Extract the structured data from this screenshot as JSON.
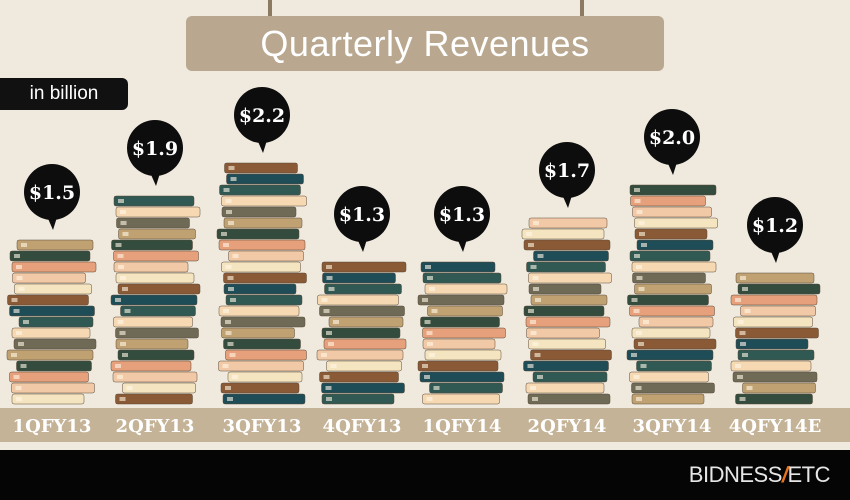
{
  "title": "Quarterly Revenues",
  "unit_label": "in billion",
  "brand": {
    "name_left": "BIDNESS",
    "slash": "/",
    "name_right": "ETC"
  },
  "colors": {
    "background": "#efe9de",
    "title_plate": "#b9a88f",
    "axis_band": "#c5b397",
    "bubble": "#0d0d0d",
    "footer": "#050505",
    "brand_accent": "#e8731c"
  },
  "chart_data": {
    "type": "bar",
    "title": "Quarterly Revenues",
    "ylabel": "in billion",
    "categories": [
      "1QFY13",
      "2QFY13",
      "3QFY13",
      "4QFY13",
      "1QFY14",
      "2QFY14",
      "3QFY14",
      "4QFY14E"
    ],
    "values": [
      1.5,
      1.9,
      2.2,
      1.3,
      1.3,
      1.7,
      2.0,
      1.2
    ],
    "data_labels": [
      "$1.5",
      "$1.9",
      "$2.2",
      "$1.3",
      "$1.3",
      "$1.7",
      "$2.0",
      "$1.2"
    ],
    "bar_style": "stacked-books",
    "ylim": [
      0,
      2.2
    ],
    "grid": false,
    "legend": "none"
  }
}
